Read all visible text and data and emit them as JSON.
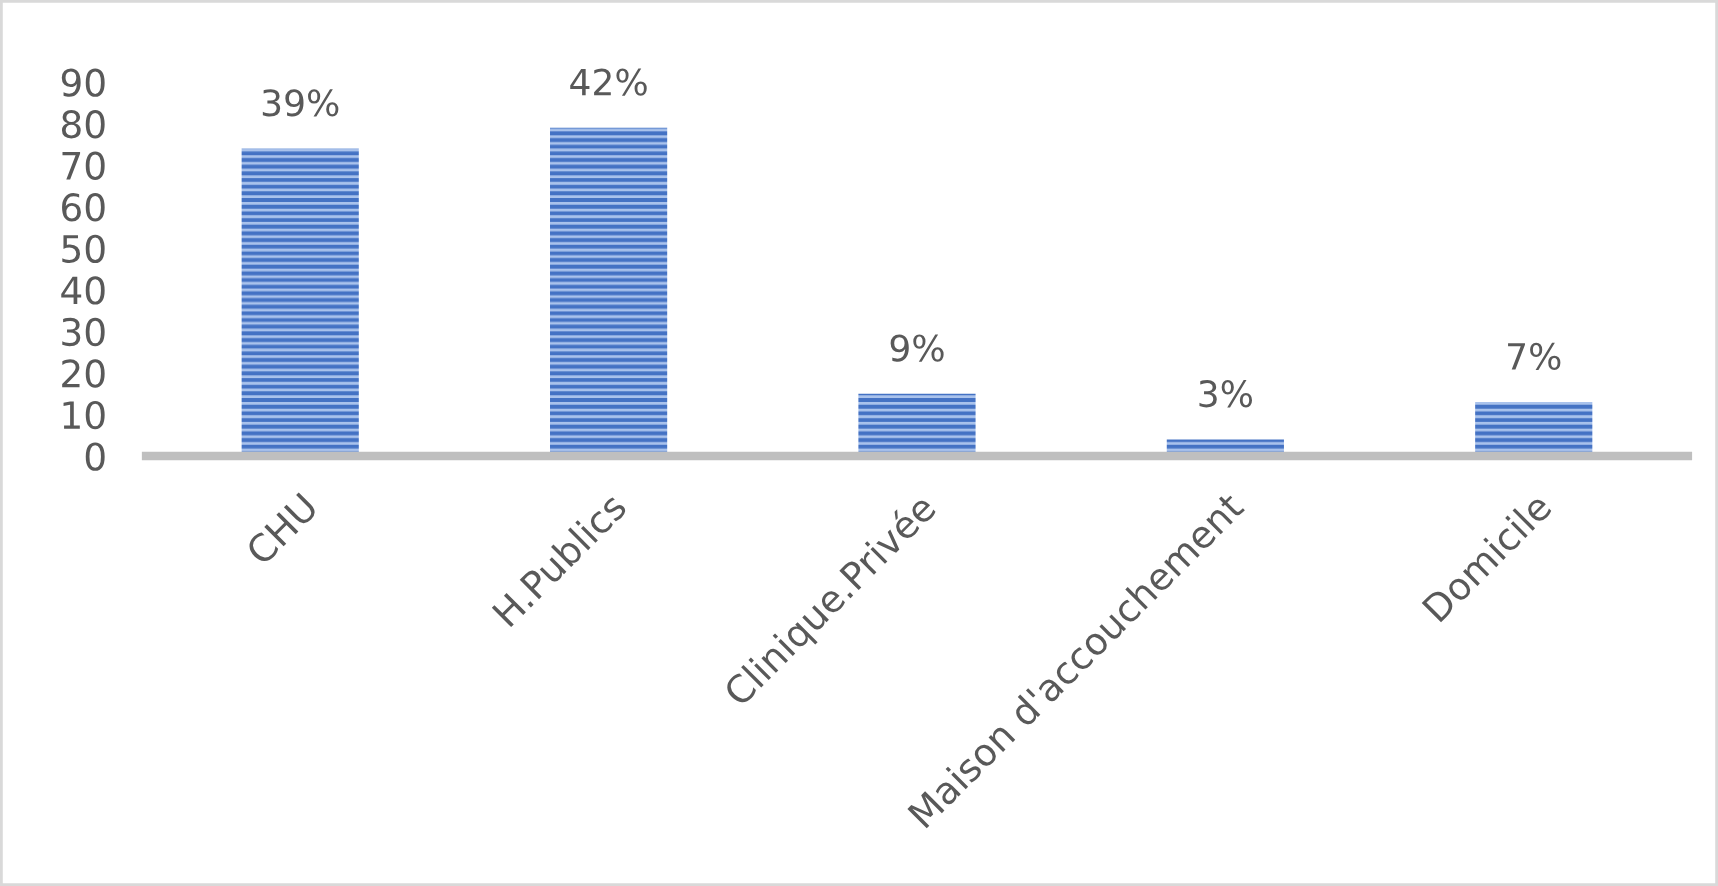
{
  "chart_data": {
    "type": "bar",
    "categories": [
      "CHU",
      "H.Publics",
      "Clinique.Privée",
      "Maison d'accouchement",
      "Domicile"
    ],
    "values": [
      74,
      79,
      15,
      4,
      13
    ],
    "annotations": [
      {
        "text": "39%",
        "x": "CHU",
        "y": 74
      },
      {
        "text": "42%",
        "x": "H.Publics",
        "y": 79
      },
      {
        "text": "9%",
        "x": "Clinique.Privée",
        "y": 15
      },
      {
        "text": "3%",
        "x": "Maison d'accouchement",
        "y": 4
      },
      {
        "text": "7%",
        "x": "Domicile",
        "y": 13
      }
    ],
    "color": "#4472c4",
    "ylim": [
      0,
      90
    ],
    "yticks": [
      0,
      10,
      20,
      30,
      40,
      50,
      60,
      70,
      80,
      90
    ],
    "grid": false
  }
}
